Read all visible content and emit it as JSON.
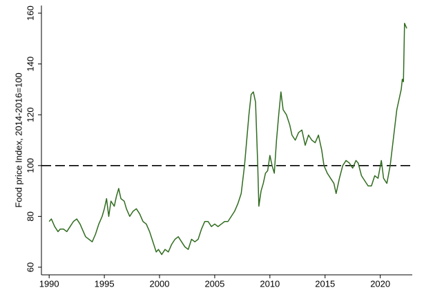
{
  "chart_data": {
    "type": "line",
    "y_label": "Food price Index, 2014-2016=100",
    "xlim": [
      1989.3,
      2022.9
    ],
    "xticks": [
      1990,
      1995,
      2000,
      2005,
      2010,
      2015,
      2020
    ],
    "ylim": [
      57,
      163
    ],
    "yticks": [
      60,
      80,
      100,
      120,
      140,
      160
    ],
    "hline": 100,
    "x": [
      1990.0,
      1990.2,
      1990.5,
      1990.8,
      1991.0,
      1991.3,
      1991.6,
      1991.9,
      1992.2,
      1992.5,
      1992.8,
      1993.0,
      1993.3,
      1993.6,
      1993.9,
      1994.2,
      1994.5,
      1994.8,
      1995.0,
      1995.2,
      1995.4,
      1995.6,
      1995.9,
      1996.1,
      1996.3,
      1996.5,
      1996.8,
      1997.0,
      1997.3,
      1997.6,
      1997.9,
      1998.2,
      1998.5,
      1998.8,
      1999.1,
      1999.4,
      1999.7,
      1999.9,
      2000.2,
      2000.5,
      2000.8,
      2001.1,
      2001.4,
      2001.7,
      2002.0,
      2002.3,
      2002.6,
      2002.9,
      2003.2,
      2003.5,
      2003.8,
      2004.1,
      2004.4,
      2004.7,
      2005.0,
      2005.3,
      2005.6,
      2005.9,
      2006.2,
      2006.5,
      2006.8,
      2007.1,
      2007.4,
      2007.7,
      2007.9,
      2008.1,
      2008.3,
      2008.5,
      2008.7,
      2008.9,
      2009.0,
      2009.2,
      2009.4,
      2009.6,
      2009.8,
      2010.0,
      2010.2,
      2010.4,
      2010.6,
      2010.8,
      2011.0,
      2011.2,
      2011.5,
      2011.8,
      2012.0,
      2012.3,
      2012.6,
      2012.9,
      2013.2,
      2013.5,
      2013.8,
      2014.1,
      2014.4,
      2014.7,
      2014.9,
      2015.2,
      2015.5,
      2015.8,
      2016.0,
      2016.3,
      2016.6,
      2016.9,
      2017.2,
      2017.5,
      2017.8,
      2018.0,
      2018.3,
      2018.6,
      2018.9,
      2019.2,
      2019.5,
      2019.8,
      2020.1,
      2020.3,
      2020.6,
      2020.9,
      2021.2,
      2021.5,
      2021.7,
      2021.9,
      2022.0,
      2022.1,
      2022.2,
      2022.4
    ],
    "series": [
      {
        "color": "#2f6b1e",
        "values": [
          78,
          79,
          76,
          74,
          75,
          75,
          74,
          76,
          78,
          79,
          77,
          75,
          72,
          71,
          70,
          73,
          77,
          80,
          83,
          87,
          80,
          86,
          84,
          88,
          91,
          87,
          86,
          83,
          80,
          82,
          83,
          81,
          78,
          77,
          74,
          70,
          66,
          67,
          65,
          67,
          66,
          69,
          71,
          72,
          70,
          68,
          67,
          71,
          70,
          71,
          75,
          78,
          78,
          76,
          77,
          76,
          77,
          78,
          78,
          80,
          82,
          85,
          89,
          100,
          110,
          120,
          128,
          129,
          125,
          100,
          84,
          90,
          93,
          97,
          98,
          104,
          100,
          97,
          110,
          120,
          129,
          122,
          120,
          116,
          112,
          110,
          113,
          114,
          108,
          112,
          110,
          109,
          112,
          106,
          100,
          97,
          95,
          93,
          89,
          95,
          100,
          102,
          101,
          99,
          102,
          101,
          96,
          94,
          92,
          92,
          96,
          95,
          102,
          95,
          93,
          100,
          111,
          122,
          126,
          130,
          134,
          133,
          156,
          154
        ]
      }
    ]
  }
}
